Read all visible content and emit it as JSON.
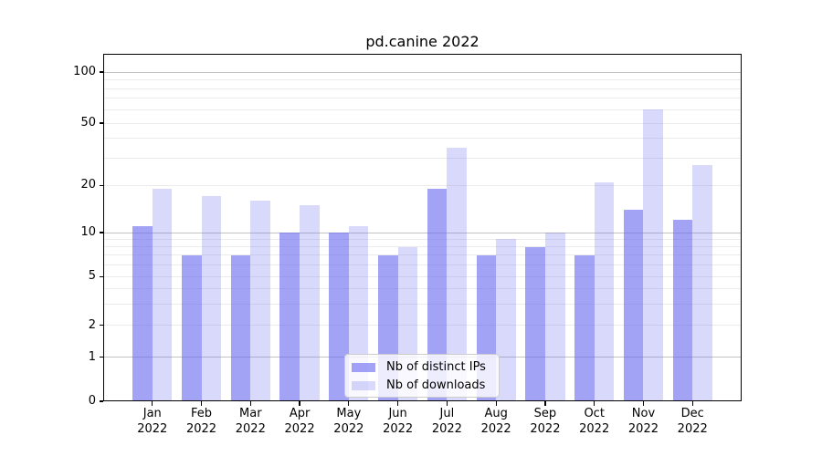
{
  "chart_data": {
    "type": "bar",
    "title": "pd.canine 2022",
    "categories": [
      "Jan 2022",
      "Feb 2022",
      "Mar 2022",
      "Apr 2022",
      "May 2022",
      "Jun 2022",
      "Jul 2022",
      "Aug 2022",
      "Sep 2022",
      "Oct 2022",
      "Nov 2022",
      "Dec 2022"
    ],
    "x_tick_months": [
      "Jan",
      "Feb",
      "Mar",
      "Apr",
      "May",
      "Jun",
      "Jul",
      "Aug",
      "Sep",
      "Oct",
      "Nov",
      "Dec"
    ],
    "x_tick_year": "2022",
    "series": [
      {
        "name": "Nb of distinct IPs",
        "color": "rgba(102,102,240,0.60)",
        "values": [
          11,
          7,
          7,
          10,
          10,
          7,
          19,
          7,
          8,
          7,
          14,
          12
        ]
      },
      {
        "name": "Nb of downloads",
        "color": "rgba(102,102,240,0.25)",
        "values": [
          19,
          17,
          16,
          15,
          11,
          8,
          35,
          9,
          10,
          21,
          60,
          27
        ]
      }
    ],
    "yscale": "symlog",
    "ylim": [
      0,
      127
    ],
    "y_ticks": [
      "0",
      "1",
      "2",
      "5",
      "10",
      "20",
      "50",
      "100"
    ],
    "y_major_gridlines": [
      1,
      10,
      100
    ],
    "y_minor_gridlines": [
      2,
      3,
      4,
      5,
      6,
      7,
      8,
      9,
      20,
      30,
      40,
      50,
      60,
      70,
      80,
      90
    ],
    "grid": true,
    "legend_position": "lower center"
  },
  "colors": {
    "background": "#ffffff",
    "grid_major": "#c3c3c3",
    "grid_minor": "#ebebeb",
    "spine": "#000000",
    "text": "#000000",
    "legend_border": "#cccccc"
  }
}
